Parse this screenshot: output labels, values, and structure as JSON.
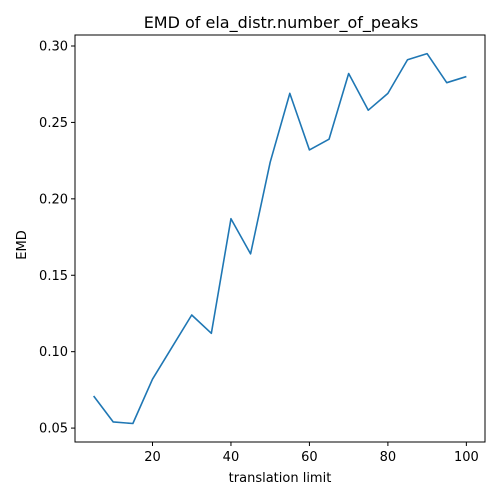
{
  "chart_data": {
    "type": "line",
    "title": "EMD of ela_distr.number_of_peaks",
    "xlabel": "translation limit",
    "ylabel": "EMD",
    "xlim": [
      0.25,
      104.75
    ],
    "ylim": [
      0.0409,
      0.3072
    ],
    "xticks": [
      20,
      40,
      60,
      80,
      100
    ],
    "yticks": [
      0.05,
      0.1,
      0.15,
      0.2,
      0.25,
      0.3
    ],
    "xtick_labels": [
      "20",
      "40",
      "60",
      "80",
      "100"
    ],
    "ytick_labels": [
      "0.05",
      "0.10",
      "0.15",
      "0.20",
      "0.25",
      "0.30"
    ],
    "grid": false,
    "line_color": "#1f77b4",
    "series": [
      {
        "x": [
          5,
          10,
          15,
          20,
          25,
          30,
          35,
          40,
          45,
          50,
          55,
          60,
          65,
          70,
          75,
          80,
          85,
          90,
          95,
          100
        ],
        "values": [
          0.071,
          0.054,
          0.053,
          0.082,
          0.103,
          0.124,
          0.112,
          0.187,
          0.164,
          0.224,
          0.269,
          0.232,
          0.239,
          0.282,
          0.258,
          0.269,
          0.291,
          0.295,
          0.276,
          0.28
        ]
      }
    ]
  }
}
